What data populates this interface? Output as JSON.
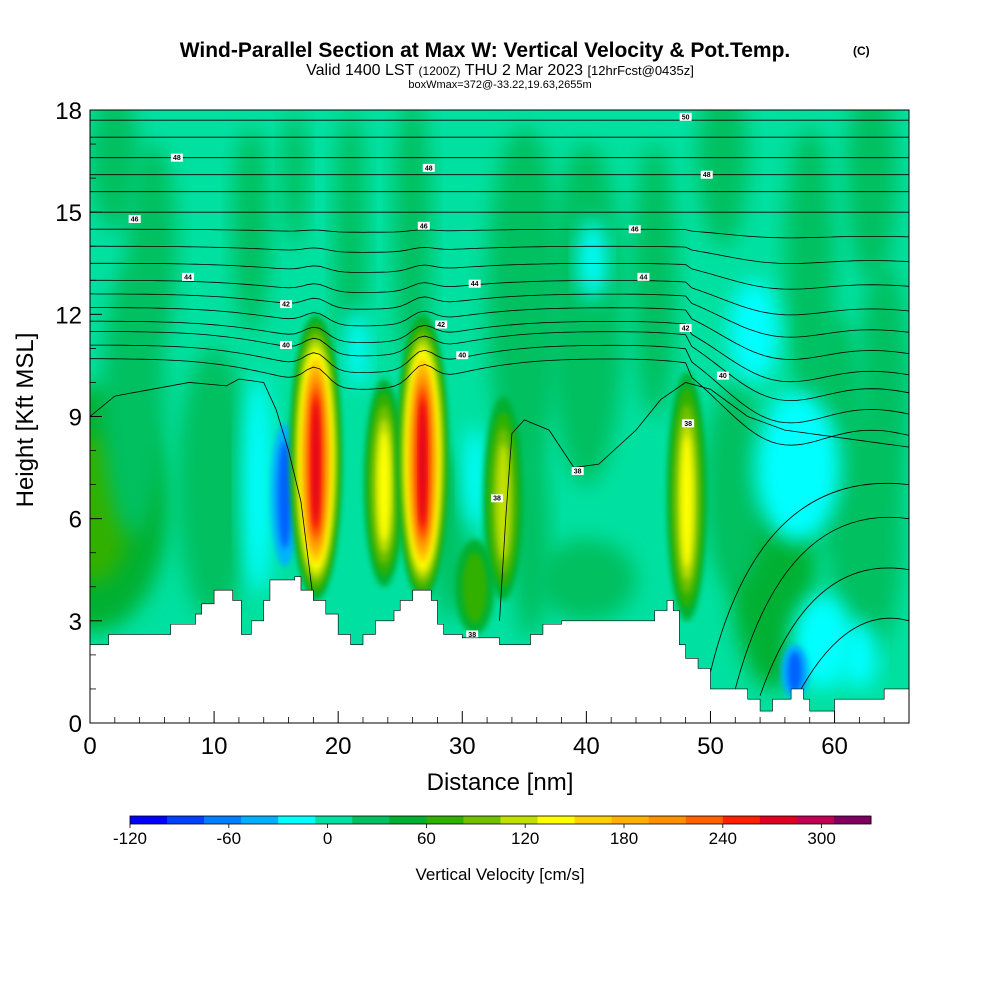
{
  "chart_data": {
    "type": "heatmap",
    "title": "Wind-Parallel Section at Max W: Vertical Velocity & Pot.Temp.",
    "copyright": "(C)",
    "subtitle": {
      "valid_prefix": "Valid 1400 LST",
      "utc": "(1200Z)",
      "date": "THU 2 Mar 2023",
      "forecast": "[12hrFcst@0435z]"
    },
    "box_info": "boxWmax=372@-33.22,19.63,2655m",
    "xlabel": "Distance [nm]",
    "ylabel": "Height [Kft MSL]",
    "xlim": [
      0,
      66
    ],
    "ylim": [
      0,
      18
    ],
    "x_ticks": [
      "0",
      "10",
      "20",
      "30",
      "40",
      "50",
      "60"
    ],
    "y_ticks": [
      "0",
      "3",
      "6",
      "9",
      "12",
      "15",
      "18"
    ],
    "colorbar": {
      "label": "Vertical Velocity [cm/s]",
      "range": [
        -120,
        330
      ],
      "tick_labels": [
        "-120",
        "-60",
        "0",
        "60",
        "120",
        "180",
        "240",
        "300"
      ],
      "colors": [
        "#0000ff",
        "#0040ff",
        "#0080ff",
        "#00b0ff",
        "#00ffff",
        "#00e0a0",
        "#00c060",
        "#00b030",
        "#30b000",
        "#70c000",
        "#c0e000",
        "#ffff00",
        "#ffd000",
        "#ffb000",
        "#ff9000",
        "#ff6000",
        "#ff2000",
        "#e00020",
        "#c00050",
        "#800060"
      ]
    },
    "background_colors": {
      "zero": "#00e0a0",
      "weak_up": "#00c060",
      "mod_up": "#00b030",
      "weak_down": "#00ffff"
    },
    "updrafts": [
      {
        "x": 18.2,
        "y_bottom": 3.6,
        "y_top": 12.0,
        "max": 300
      },
      {
        "x": 23.7,
        "y_bottom": 4.0,
        "y_top": 10.1,
        "max": 130
      },
      {
        "x": 26.8,
        "y_bottom": 3.6,
        "y_top": 12.0,
        "max": 300
      },
      {
        "x": 31.0,
        "y_bottom": 2.6,
        "y_top": 5.4,
        "max": 90
      },
      {
        "x": 33.3,
        "y_bottom": 3.6,
        "y_top": 9.6,
        "max": 120
      },
      {
        "x": 48.1,
        "y_bottom": 3.0,
        "y_top": 10.3,
        "max": 140
      }
    ],
    "downdrafts": [
      {
        "x": 15.7,
        "y_bottom": 4.6,
        "y_top": 8.8,
        "min": -100
      },
      {
        "x": 56.8,
        "y_bottom": 0.7,
        "y_top": 2.3,
        "min": -90
      }
    ],
    "theta_contour_labels": [
      {
        "text": "50",
        "x": 48.0,
        "y": 17.8
      },
      {
        "text": "48",
        "x": 7.0,
        "y": 16.6
      },
      {
        "text": "48",
        "x": 27.3,
        "y": 16.3
      },
      {
        "text": "48",
        "x": 49.7,
        "y": 16.1
      },
      {
        "text": "46",
        "x": 3.6,
        "y": 14.8
      },
      {
        "text": "46",
        "x": 26.9,
        "y": 14.6
      },
      {
        "text": "46",
        "x": 43.9,
        "y": 14.5
      },
      {
        "text": "44",
        "x": 7.9,
        "y": 13.1
      },
      {
        "text": "44",
        "x": 31.0,
        "y": 12.9
      },
      {
        "text": "44",
        "x": 44.6,
        "y": 13.1
      },
      {
        "text": "42",
        "x": 15.8,
        "y": 12.3
      },
      {
        "text": "42",
        "x": 28.3,
        "y": 11.7
      },
      {
        "text": "42",
        "x": 48.0,
        "y": 11.6
      },
      {
        "text": "40",
        "x": 15.8,
        "y": 11.1
      },
      {
        "text": "40",
        "x": 30.0,
        "y": 10.8
      },
      {
        "text": "40",
        "x": 51.0,
        "y": 10.2
      },
      {
        "text": "38",
        "x": 48.2,
        "y": 8.8
      },
      {
        "text": "38",
        "x": 39.3,
        "y": 7.4
      },
      {
        "text": "38",
        "x": 32.8,
        "y": 6.6
      },
      {
        "text": "38",
        "x": 30.8,
        "y": 2.6
      }
    ],
    "terrain": [
      [
        0,
        2.3
      ],
      [
        1.5,
        2.6
      ],
      [
        6.5,
        2.9
      ],
      [
        8.5,
        3.2
      ],
      [
        9.0,
        3.5
      ],
      [
        10.0,
        3.9
      ],
      [
        11.5,
        3.6
      ],
      [
        12.2,
        2.6
      ],
      [
        13.0,
        3.0
      ],
      [
        14.0,
        3.6
      ],
      [
        14.5,
        4.2
      ],
      [
        16.5,
        4.3
      ],
      [
        17.0,
        3.9
      ],
      [
        18.0,
        3.6
      ],
      [
        19.0,
        3.2
      ],
      [
        20.0,
        2.6
      ],
      [
        21.0,
        2.3
      ],
      [
        22.0,
        2.6
      ],
      [
        23.0,
        3.0
      ],
      [
        24.5,
        3.3
      ],
      [
        25.0,
        3.6
      ],
      [
        26.0,
        3.9
      ],
      [
        27.0,
        3.9
      ],
      [
        27.5,
        3.6
      ],
      [
        28.0,
        2.9
      ],
      [
        28.5,
        2.6
      ],
      [
        30.0,
        2.5
      ],
      [
        33.0,
        2.3
      ],
      [
        35.5,
        2.6
      ],
      [
        36.5,
        2.9
      ],
      [
        38.0,
        3.0
      ],
      [
        45.0,
        3.0
      ],
      [
        45.5,
        3.3
      ],
      [
        46.5,
        3.6
      ],
      [
        47.0,
        3.3
      ],
      [
        47.5,
        2.3
      ],
      [
        48.0,
        1.9
      ],
      [
        49.0,
        1.6
      ],
      [
        50.0,
        1.0
      ],
      [
        52.0,
        1.0
      ],
      [
        53.0,
        0.7
      ],
      [
        54.0,
        0.35
      ],
      [
        55.0,
        0.7
      ],
      [
        56.5,
        1.0
      ],
      [
        57.5,
        0.7
      ],
      [
        58.0,
        0.35
      ],
      [
        60.0,
        0.7
      ],
      [
        64.0,
        1.0
      ],
      [
        66.0,
        1.0
      ]
    ]
  }
}
